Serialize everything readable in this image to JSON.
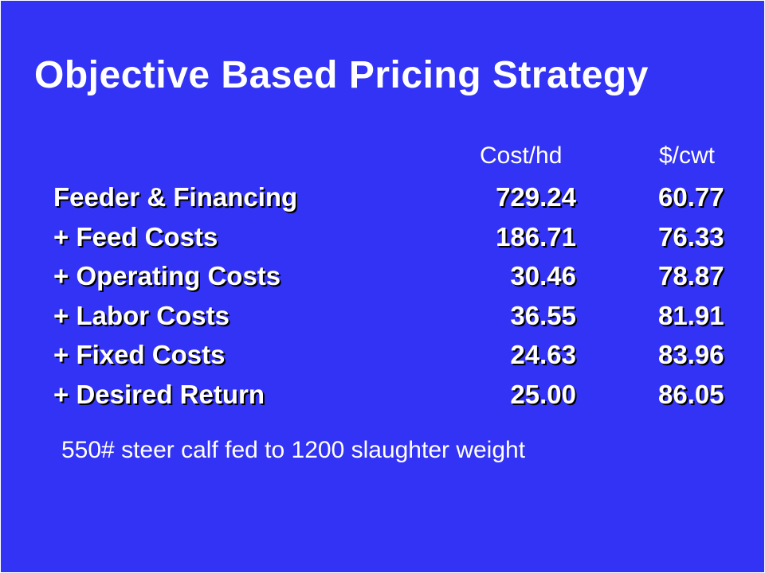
{
  "slide": {
    "title": "Objective Based Pricing Strategy",
    "columns": {
      "cost": "Cost/hd",
      "cwt": "$/cwt"
    },
    "rows": [
      {
        "label": "Feeder & Financing",
        "cost": "729.24",
        "cwt": "60.77"
      },
      {
        "label": "+ Feed Costs",
        "cost": "186.71",
        "cwt": "76.33"
      },
      {
        "label": "+ Operating Costs",
        "cost": "30.46",
        "cwt": "78.87"
      },
      {
        "label": "+ Labor Costs",
        "cost": "36.55",
        "cwt": "81.91"
      },
      {
        "label": "+ Fixed Costs",
        "cost": "24.63",
        "cwt": "83.96"
      },
      {
        "label": "+ Desired Return",
        "cost": "25.00",
        "cwt": "86.05"
      }
    ],
    "footnote": "550# steer calf fed to 1200 slaughter weight"
  },
  "colors": {
    "background": "#3333f5",
    "text": "#ffffff",
    "shadow": "#000000"
  }
}
